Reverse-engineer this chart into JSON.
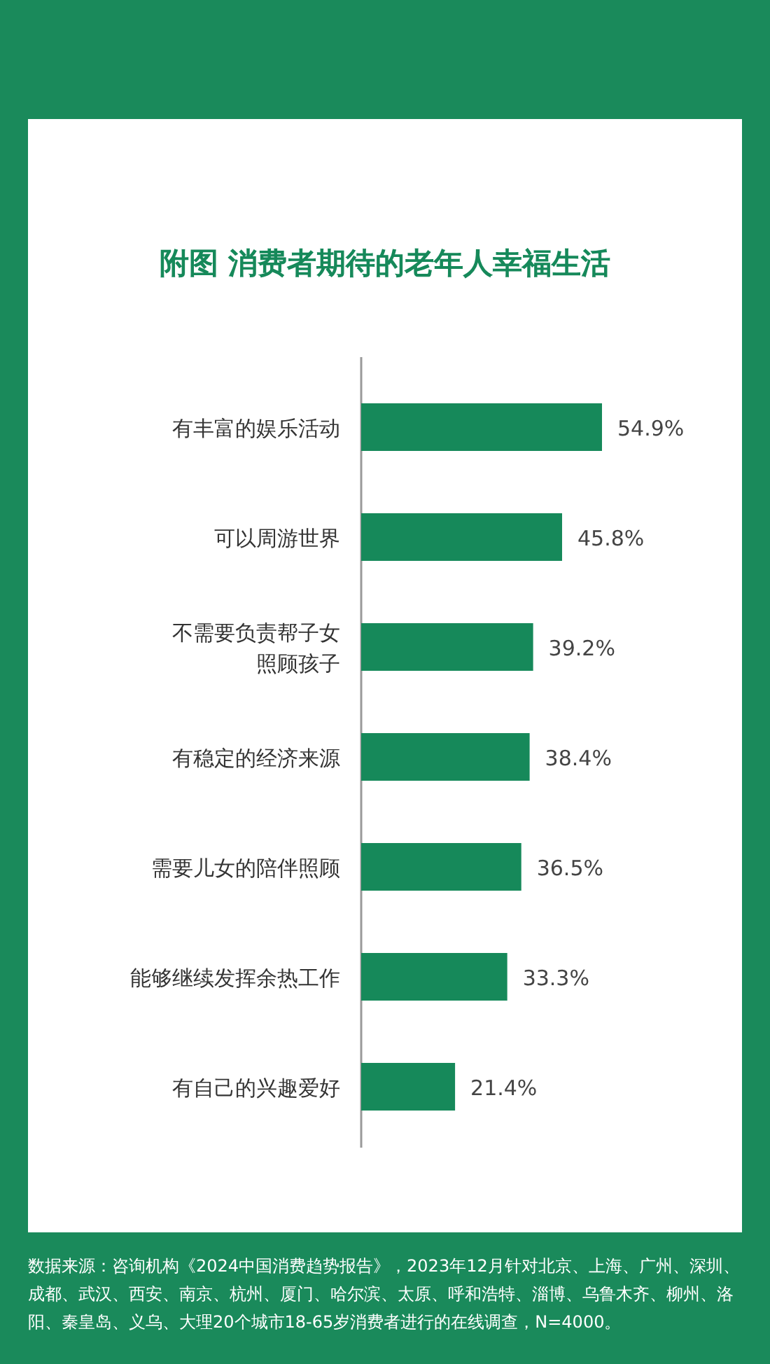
{
  "chart_data": {
    "type": "bar",
    "orientation": "horizontal",
    "title": "附图  消费者期待的老年人幸福生活",
    "categories": [
      "有丰富的娱乐活动",
      "可以周游世界",
      "不需要负责帮子女照顾孩子",
      "有稳定的经济来源",
      "需要儿女的陪伴照顾",
      "能够继续发挥余热工作",
      "有自己的兴趣爱好"
    ],
    "values": [
      54.9,
      45.8,
      39.2,
      38.4,
      36.5,
      33.3,
      21.4
    ],
    "value_labels": [
      "54.9%",
      "45.8%",
      "39.2%",
      "38.4%",
      "36.5%",
      "33.3%",
      "21.4%"
    ],
    "color": "#16895a",
    "annotations": [
      "数据来源：咨询机构《2024中国消费趋势报告》，2023年12月针对北京、上海、广州、深圳、成都、武汉、西安、南京、杭州、厦门、哈尔滨、太原、呼和浩特、淄博、乌鲁木齐、柳州、洛阳、秦皇岛、义乌、大理20个城市18-65岁消费者进行的在线调查，N=4000。"
    ]
  }
}
